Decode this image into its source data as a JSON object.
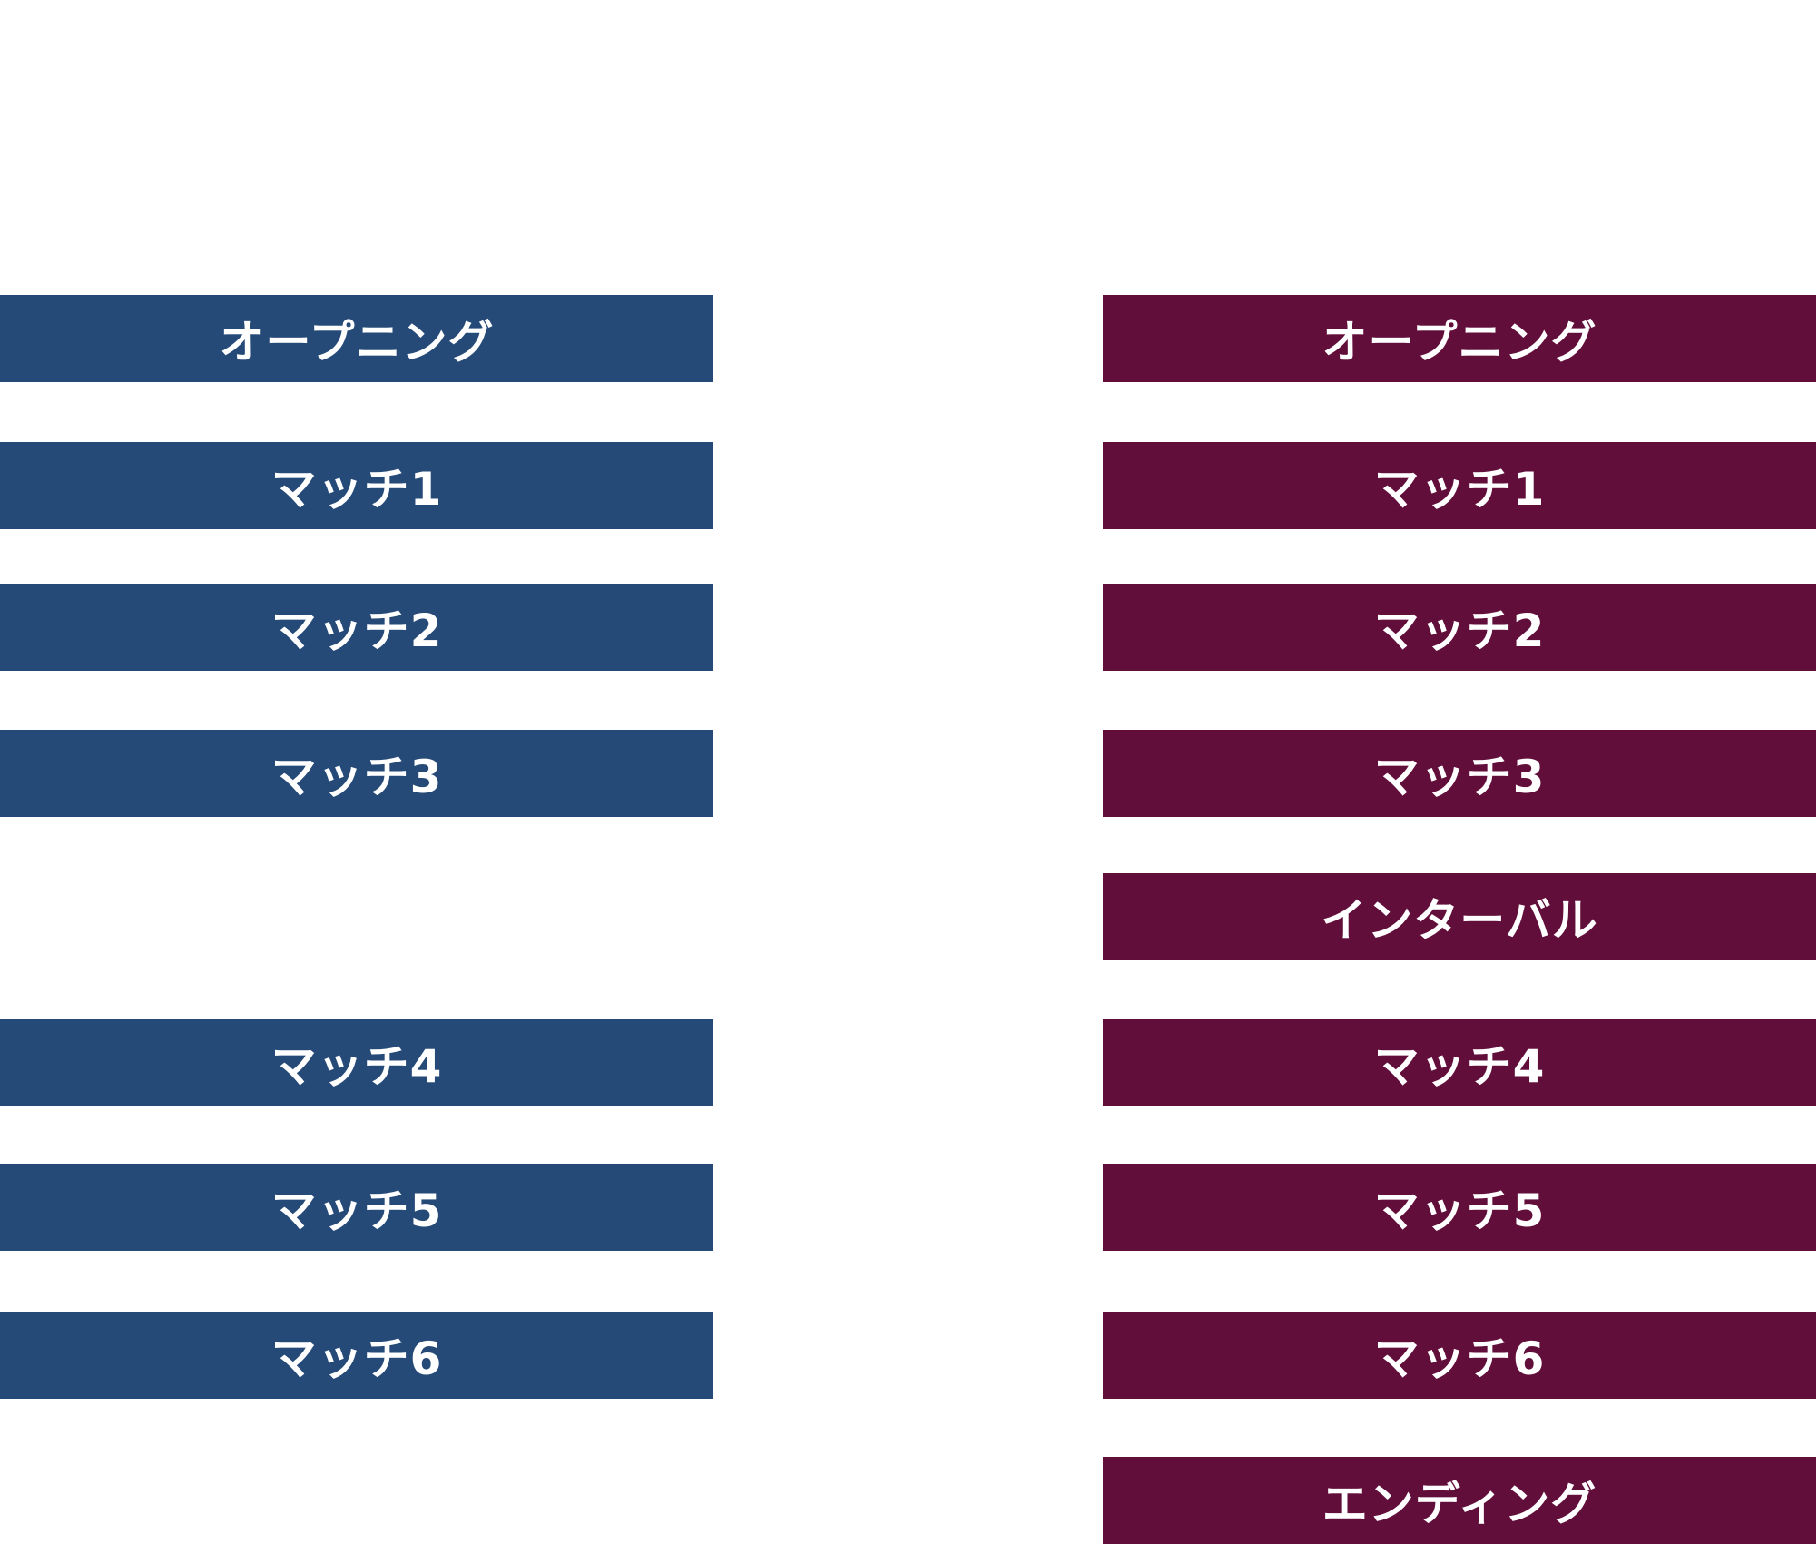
{
  "colors": {
    "left_bar": "#264a78",
    "right_bar": "#620e3b",
    "text": "#ffffff",
    "background": "#ffffff"
  },
  "left_column": {
    "items": [
      "オープニング",
      "マッチ1",
      "マッチ2",
      "マッチ3",
      "マッチ4",
      "マッチ5",
      "マッチ6"
    ]
  },
  "right_column": {
    "items": [
      "オープニング",
      "マッチ1",
      "マッチ2",
      "マッチ3",
      "インターバル",
      "マッチ4",
      "マッチ5",
      "マッチ6",
      "エンディング"
    ]
  }
}
